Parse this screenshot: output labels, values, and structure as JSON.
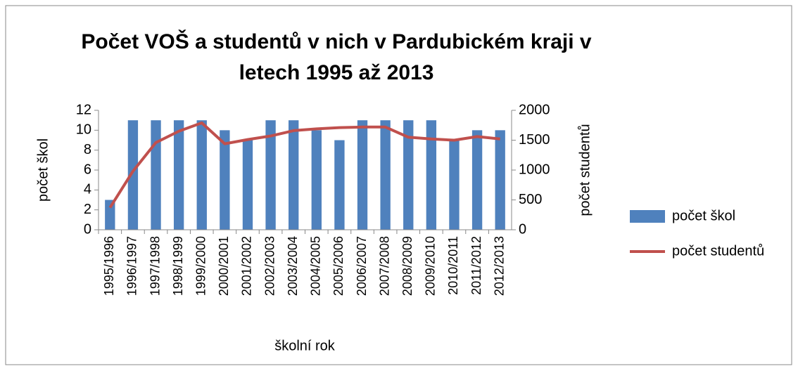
{
  "chart_data": {
    "type": "combo",
    "title": "Počet VOŠ a studentů v nich v Pardubickém kraji v letech 1995 až 2013",
    "x_label": "školní rok",
    "y_label": "počet škol",
    "y2_label": "počet studentů",
    "categories": [
      "1995/1996",
      "1996/1997",
      "1997/1998",
      "1998/1999",
      "1999/2000",
      "2000/2001",
      "2001/2002",
      "2002/2003",
      "2003/2004",
      "2004/2005",
      "2005/2006",
      "2006/2007",
      "2007/2008",
      "2008/2009",
      "2009/2010",
      "2010/2011",
      "2011/2012",
      "2012/2013"
    ],
    "series": [
      {
        "name": "počet škol",
        "type": "bar",
        "color": "#4f81bd",
        "values": [
          3,
          11,
          11,
          11,
          11,
          10,
          9,
          11,
          11,
          10,
          9,
          11,
          11,
          11,
          11,
          9,
          10,
          10
        ]
      },
      {
        "name": "počet studentů",
        "type": "line",
        "axis": "y2",
        "color": "#c0504d",
        "values": [
          370,
          980,
          1460,
          1650,
          1790,
          1440,
          1510,
          1570,
          1660,
          1690,
          1710,
          1720,
          1720,
          1550,
          1520,
          1500,
          1560,
          1520
        ]
      }
    ],
    "ylim": [
      0,
      12
    ],
    "yticks": [
      0,
      2,
      4,
      6,
      8,
      10,
      12
    ],
    "y2lim": [
      0,
      2000
    ],
    "y2ticks": [
      0,
      500,
      1000,
      1500,
      2000
    ],
    "grid": false,
    "legend": "right"
  }
}
